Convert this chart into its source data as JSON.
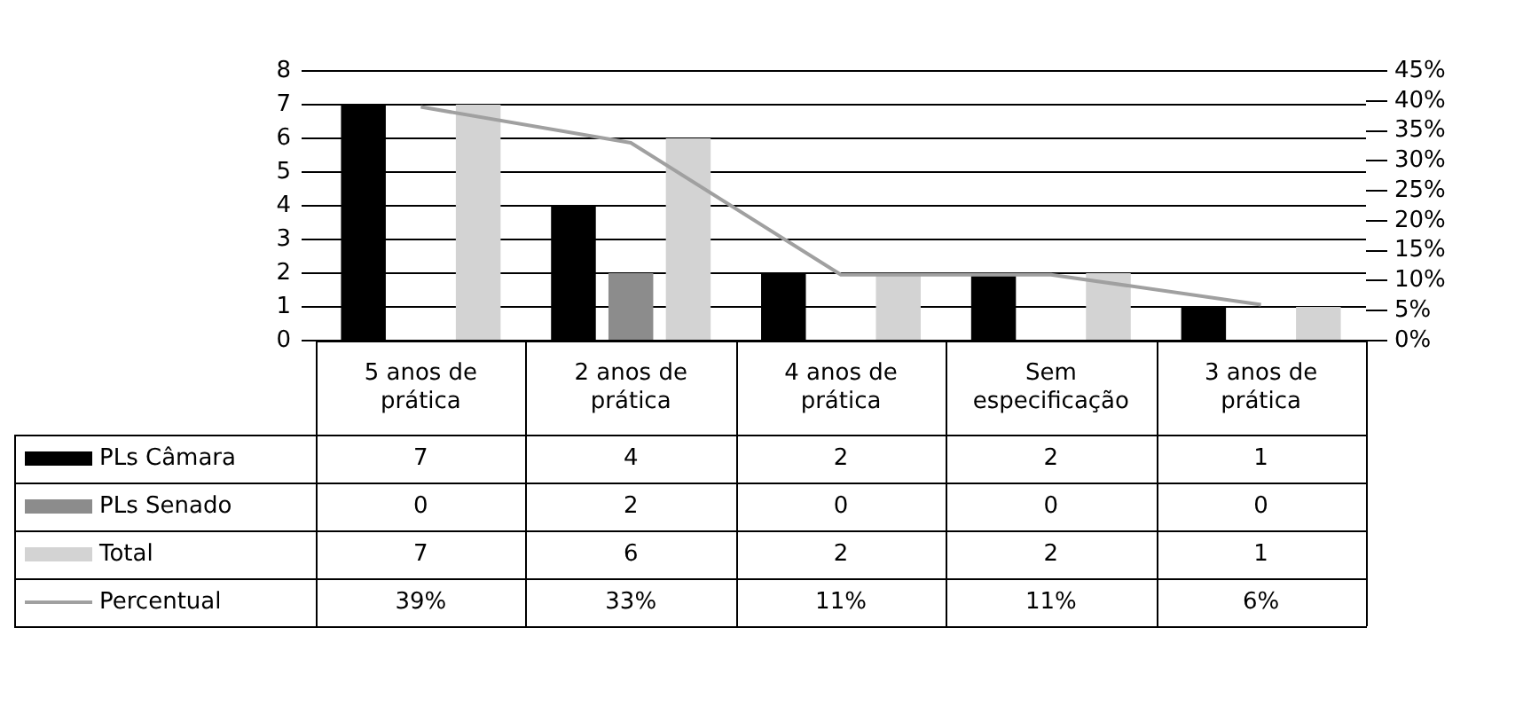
{
  "chart_data": {
    "type": "bar",
    "categories": [
      "5 anos de prática",
      "2 anos de prática",
      "4 anos de prática",
      "Sem especificação",
      "3 anos de prática"
    ],
    "series": [
      {
        "name": "PLs Câmara",
        "color": "#000000",
        "values": [
          7,
          4,
          2,
          2,
          1
        ]
      },
      {
        "name": "PLs Senado",
        "color": "#8c8c8c",
        "values": [
          0,
          2,
          0,
          0,
          0
        ]
      },
      {
        "name": "Total",
        "color": "#d3d3d3",
        "values": [
          7,
          6,
          2,
          2,
          1
        ]
      },
      {
        "name": "Percentual",
        "type": "line",
        "axis": "y2",
        "color": "#a0a0a0",
        "values": [
          39,
          33,
          11,
          11,
          6
        ],
        "value_labels": [
          "39%",
          "33%",
          "11%",
          "11%",
          "6%"
        ]
      }
    ],
    "ylim": [
      0,
      8
    ],
    "yticks": [
      0,
      1,
      2,
      3,
      4,
      5,
      6,
      7,
      8
    ],
    "y2lim": [
      0,
      45
    ],
    "y2ticks": [
      {
        "value": 0,
        "label": "0%"
      },
      {
        "value": 5,
        "label": "5%"
      },
      {
        "value": 10,
        "label": "10%"
      },
      {
        "value": 15,
        "label": "15%"
      },
      {
        "value": 20,
        "label": "20%"
      },
      {
        "value": 25,
        "label": "25%"
      },
      {
        "value": 30,
        "label": "30%"
      },
      {
        "value": 35,
        "label": "35%"
      },
      {
        "value": 40,
        "label": "40%"
      },
      {
        "value": 45,
        "label": "45%"
      }
    ],
    "grid": "y",
    "legend": "bottom left",
    "marker": "none",
    "data_labels": true
  }
}
